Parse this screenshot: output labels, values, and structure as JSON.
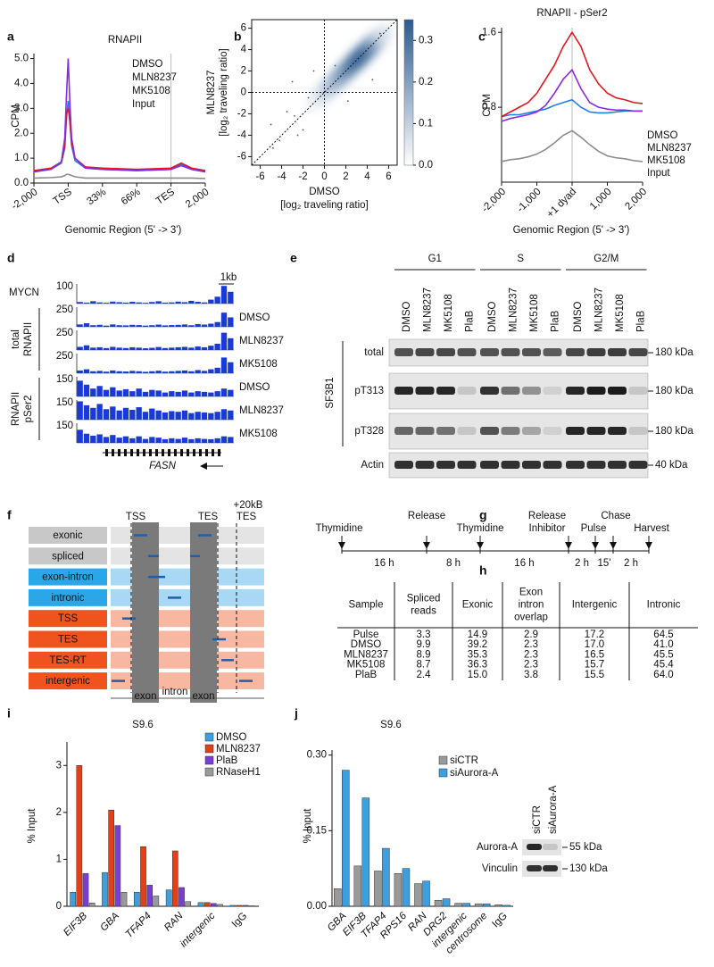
{
  "chart_data": [
    {
      "panel": "a",
      "type": "line",
      "title": "RNAPII",
      "ylabel": "CPM",
      "xlabel": "Genomic Region (5' -> 3')",
      "x": [
        0,
        0.5,
        0.8,
        0.9,
        0.95,
        1.0,
        1.05,
        1.1,
        1.2,
        1.5,
        2,
        3,
        4,
        4.3,
        4.6,
        5
      ],
      "xlim": [
        0,
        5
      ],
      "xticks": [
        {
          "value": 0,
          "label": "-2,000"
        },
        {
          "value": 1,
          "label": "TSS"
        },
        {
          "value": 2,
          "label": "33%"
        },
        {
          "value": 3,
          "label": "66%"
        },
        {
          "value": 4,
          "label": "TES"
        },
        {
          "value": 5,
          "label": "2,000"
        }
      ],
      "ylim": [
        0,
        5.2
      ],
      "yticks": [
        {
          "value": 0,
          "label": "0.0"
        },
        {
          "value": 1,
          "label": "1.0"
        },
        {
          "value": 2,
          "label": "2.0"
        },
        {
          "value": 3,
          "label": "3.0"
        },
        {
          "value": 4,
          "label": "4.0"
        },
        {
          "value": 5,
          "label": "5.0"
        }
      ],
      "vline": 4,
      "series": [
        {
          "name": "DMSO",
          "color": "#1f7fe8",
          "values": [
            0.45,
            0.55,
            0.8,
            1.4,
            2.6,
            3.3,
            2.4,
            1.5,
            0.9,
            0.6,
            0.55,
            0.5,
            0.55,
            0.75,
            0.55,
            0.45
          ]
        },
        {
          "name": "MLN8237",
          "color": "#e3161c",
          "values": [
            0.5,
            0.6,
            0.85,
            1.5,
            2.8,
            3.0,
            2.5,
            1.6,
            1.0,
            0.65,
            0.6,
            0.55,
            0.6,
            0.8,
            0.6,
            0.5
          ]
        },
        {
          "name": "MK5108",
          "color": "#8a2be2",
          "values": [
            0.45,
            0.55,
            0.85,
            1.8,
            3.5,
            5.0,
            3.2,
            1.8,
            1.0,
            0.6,
            0.55,
            0.5,
            0.55,
            0.7,
            0.55,
            0.45
          ]
        },
        {
          "name": "Input",
          "color": "#8c8c8c",
          "values": [
            0.2,
            0.22,
            0.25,
            0.3,
            0.35,
            0.35,
            0.33,
            0.3,
            0.25,
            0.2,
            0.2,
            0.2,
            0.2,
            0.2,
            0.2,
            0.18
          ]
        }
      ]
    },
    {
      "panel": "b",
      "type": "density",
      "xlabel": [
        "DMSO",
        "[log₂ traveling ratio]"
      ],
      "ylabel": [
        "MLN8237",
        "[log₂ traveling ratio]"
      ],
      "xlim": [
        -6.8,
        6.8
      ],
      "ylim": [
        -6.8,
        6.8
      ],
      "xticks": [
        -6,
        -4,
        -2,
        0,
        2,
        4,
        6
      ],
      "yticks": [
        -6,
        -4,
        -2,
        0,
        2,
        4,
        6
      ],
      "density": {
        "x": [
          -1,
          -0.5,
          0,
          0.5,
          1,
          1.5,
          2,
          2.5,
          3,
          3.5,
          4,
          4.5,
          5,
          5.5
        ],
        "y": [
          -1,
          -0.5,
          0,
          0.5,
          1,
          1.5,
          2,
          2.5,
          3,
          3.5,
          4,
          4.5,
          5,
          5.5
        ],
        "values": [
          0.02,
          0.05,
          0.08,
          0.12,
          0.16,
          0.2,
          0.24,
          0.28,
          0.32,
          0.33,
          0.3,
          0.25,
          0.15,
          0.06
        ]
      },
      "points": {
        "x": [
          -5,
          -4.2,
          -3.5,
          -2.8,
          -2,
          -1.5,
          -3,
          -4.8,
          1,
          -1,
          4.5,
          5.2,
          2.2,
          -2.5
        ],
        "y": [
          -3,
          -4.5,
          -1.8,
          -2.2,
          -3.5,
          -0.5,
          1,
          -5.2,
          2.5,
          2,
          1.2,
          5.5,
          -0.8,
          -4
        ]
      },
      "colorbar": {
        "colors": [
          "#ffffff",
          "#2a5a8f"
        ],
        "lim": [
          0,
          0.35
        ],
        "ticks": [
          {
            "value": 0,
            "label": "0.0"
          },
          0.1,
          0.2,
          0.3
        ]
      }
    },
    {
      "panel": "c",
      "type": "line",
      "title": "RNAPII - pSer2",
      "ylabel": "CPM",
      "xlabel": "Genomic Region (5' -> 3')",
      "x": [
        -2000,
        -1750,
        -1500,
        -1250,
        -1000,
        -750,
        -500,
        -250,
        0,
        250,
        500,
        750,
        1000,
        1250,
        1500,
        1750,
        2000
      ],
      "xlim": [
        -2000,
        2000
      ],
      "xticks": [
        {
          "value": -2000,
          "label": "-2,000"
        },
        {
          "value": -1000,
          "label": "-1,000"
        },
        {
          "value": 0,
          "label": "+1 dyad"
        },
        {
          "value": 1000,
          "label": "1,000"
        },
        {
          "value": 2000,
          "label": "2,000"
        }
      ],
      "ylim": [
        0,
        1.65
      ],
      "yticks": [
        0.8,
        1.6
      ],
      "vline": 0,
      "series": [
        {
          "name": "DMSO",
          "color": "#1f7fe8",
          "values": [
            0.7,
            0.72,
            0.72,
            0.74,
            0.76,
            0.78,
            0.82,
            0.85,
            0.88,
            0.8,
            0.75,
            0.74,
            0.74,
            0.75,
            0.76,
            0.76,
            0.76
          ]
        },
        {
          "name": "MLN8237",
          "color": "#e3161c",
          "values": [
            0.7,
            0.75,
            0.8,
            0.85,
            0.95,
            1.1,
            1.25,
            1.45,
            1.6,
            1.45,
            1.2,
            1.05,
            0.95,
            0.9,
            0.88,
            0.85,
            0.84
          ]
        },
        {
          "name": "MK5108",
          "color": "#8a2be2",
          "values": [
            0.65,
            0.68,
            0.7,
            0.72,
            0.75,
            0.82,
            0.95,
            1.1,
            1.2,
            1.0,
            0.85,
            0.8,
            0.78,
            0.77,
            0.77,
            0.76,
            0.76
          ]
        },
        {
          "name": "Input",
          "color": "#8c8c8c",
          "values": [
            0.22,
            0.24,
            0.25,
            0.27,
            0.3,
            0.35,
            0.42,
            0.5,
            0.55,
            0.48,
            0.4,
            0.33,
            0.28,
            0.26,
            0.25,
            0.23,
            0.22
          ]
        }
      ]
    },
    {
      "panel": "i",
      "type": "bar",
      "title": "S9.6",
      "ylabel": "% Input",
      "categories": [
        "EIF3B",
        "GBA",
        "TFAP4",
        "RAN",
        "intergenic",
        "IgG"
      ],
      "ylim": [
        0,
        3.5
      ],
      "yticks": [
        0,
        1,
        2,
        3
      ],
      "series": [
        {
          "name": "DMSO",
          "color": "#3ca0e0",
          "values": [
            0.3,
            0.72,
            0.3,
            0.35,
            0.08,
            0.02
          ]
        },
        {
          "name": "MLN8237",
          "color": "#e0401a",
          "values": [
            3.0,
            2.05,
            1.27,
            1.18,
            0.08,
            0.02
          ]
        },
        {
          "name": "PlaB",
          "color": "#7a3ed6",
          "values": [
            0.7,
            1.72,
            0.45,
            0.4,
            0.06,
            0.02
          ]
        },
        {
          "name": "RNaseH1",
          "color": "#9a9a9a",
          "values": [
            0.07,
            0.3,
            0.22,
            0.1,
            0.04,
            0.01
          ]
        }
      ]
    },
    {
      "panel": "j",
      "type": "bar",
      "title": "S9.6",
      "ylabel": "% Input",
      "categories": [
        "GBA",
        "EIF3B",
        "TFAP4",
        "RPS16",
        "RAN",
        "DRG2",
        "intergenic",
        "centrosome",
        "IgG"
      ],
      "ylim": [
        0,
        0.31
      ],
      "yticks": [
        {
          "value": 0,
          "label": "0.00"
        },
        {
          "value": 0.15,
          "label": "0.15"
        },
        {
          "value": 0.3,
          "label": "0.30"
        }
      ],
      "series": [
        {
          "name": "siCTR",
          "color": "#9a9a9a",
          "values": [
            0.035,
            0.08,
            0.07,
            0.065,
            0.045,
            0.012,
            0.006,
            0.005,
            0.003
          ]
        },
        {
          "name": "siAurora-A",
          "color": "#3ca0e0",
          "values": [
            0.27,
            0.215,
            0.115,
            0.075,
            0.05,
            0.015,
            0.006,
            0.005,
            0.002
          ]
        }
      ],
      "inset": {
        "lanes": [
          "siCTR",
          "siAurora-A"
        ],
        "rows": [
          {
            "name": "Aurora-A",
            "size": "55 kDa",
            "intensity": [
              0.9,
              0.15
            ]
          },
          {
            "name": "Vinculin",
            "size": "130 kDa",
            "intensity": [
              0.85,
              0.85
            ]
          }
        ]
      }
    }
  ],
  "browser": {
    "panel": "d",
    "scale": "1kb",
    "gene": "FASN",
    "groups": [
      [
        "total",
        "RNAPII"
      ],
      [
        "RNAPII",
        "pSer2"
      ]
    ],
    "tracks": [
      {
        "name": "MYCN",
        "range": 100,
        "values": [
          8,
          5,
          12,
          6,
          4,
          10,
          7,
          5,
          9,
          6,
          4,
          8,
          12,
          5,
          6,
          10,
          7,
          14,
          9,
          6,
          20,
          35,
          90,
          60
        ]
      },
      {
        "name": "DMSO",
        "range": 250,
        "values": [
          30,
          45,
          20,
          25,
          15,
          30,
          20,
          18,
          25,
          22,
          15,
          20,
          28,
          18,
          22,
          25,
          30,
          20,
          35,
          28,
          40,
          60,
          180,
          120
        ]
      },
      {
        "name": "MLN8237",
        "range": 250,
        "values": [
          40,
          60,
          30,
          35,
          25,
          40,
          30,
          25,
          35,
          30,
          22,
          28,
          38,
          25,
          30,
          35,
          40,
          30,
          45,
          35,
          55,
          80,
          220,
          150
        ]
      },
      {
        "name": "MK5108",
        "range": 250,
        "values": [
          35,
          50,
          25,
          30,
          20,
          35,
          25,
          22,
          30,
          25,
          18,
          25,
          32,
          20,
          25,
          30,
          35,
          25,
          40,
          30,
          50,
          70,
          200,
          140
        ]
      },
      {
        "name": "DMSO",
        "range": 150,
        "values": [
          120,
          90,
          60,
          80,
          50,
          70,
          45,
          55,
          40,
          60,
          35,
          50,
          45,
          30,
          40,
          35,
          45,
          30,
          40,
          35,
          30,
          40,
          60,
          50
        ]
      },
      {
        "name": "MLN8237",
        "range": 150,
        "values": [
          140,
          110,
          90,
          120,
          80,
          100,
          70,
          90,
          75,
          95,
          60,
          85,
          70,
          55,
          65,
          60,
          70,
          50,
          60,
          55,
          50,
          60,
          80,
          70
        ]
      },
      {
        "name": "MK5108",
        "range": 150,
        "values": [
          100,
          70,
          55,
          65,
          45,
          60,
          40,
          50,
          35,
          50,
          30,
          45,
          40,
          28,
          35,
          30,
          40,
          28,
          35,
          30,
          28,
          35,
          50,
          45
        ]
      }
    ]
  },
  "blot": {
    "panel": "e",
    "groups": [
      "G1",
      "S",
      "G2/M"
    ],
    "lanes": [
      "DMSO",
      "MLN8237",
      "MK5108",
      "PlaB",
      "DMSO",
      "MLN8237",
      "MK5108",
      "PlaB",
      "DMSO",
      "MLN8237",
      "MK5108",
      "PlaB"
    ],
    "target": "SF3B1",
    "rows": [
      {
        "name": "total",
        "size": "180 kDa",
        "intensity": [
          0.7,
          0.75,
          0.75,
          0.7,
          0.7,
          0.7,
          0.7,
          0.65,
          0.75,
          0.8,
          0.8,
          0.75
        ]
      },
      {
        "name": "pT313",
        "size": "180 kDa",
        "intensity": [
          0.9,
          0.9,
          0.9,
          0.15,
          0.85,
          0.55,
          0.4,
          0.1,
          0.9,
          0.95,
          0.95,
          0.15
        ]
      },
      {
        "name": "pT328",
        "size": "180 kDa",
        "intensity": [
          0.6,
          0.6,
          0.55,
          0.15,
          0.7,
          0.5,
          0.3,
          0.1,
          0.9,
          0.9,
          0.9,
          0.15
        ]
      },
      {
        "name": "Actin",
        "size": "40 kDa",
        "intensity": [
          0.85,
          0.85,
          0.85,
          0.85,
          0.85,
          0.85,
          0.85,
          0.85,
          0.85,
          0.85,
          0.85,
          0.85
        ]
      }
    ]
  },
  "diagram": {
    "panel": "f",
    "rows": [
      "exonic",
      "spliced",
      "exon-intron",
      "intronic",
      "TSS",
      "TES",
      "TES-RT",
      "intergenic"
    ],
    "markers": [
      "TSS",
      "TES"
    ],
    "far_marker": [
      "+20kB",
      "TES"
    ],
    "segments": [
      "exon",
      "intron",
      "exon"
    ]
  },
  "timeline": {
    "panel": "g",
    "events": [
      [
        "Thymidine"
      ],
      [
        "Release"
      ],
      [
        "Thymidine"
      ],
      [
        "Release",
        "Inhibitor"
      ],
      [
        "Pulse"
      ],
      [
        "Chase"
      ],
      [
        "Harvest"
      ]
    ],
    "durations": [
      "16 h",
      "8 h",
      "16 h",
      "2 h",
      "15'",
      "2 h"
    ]
  },
  "table": {
    "panel": "h",
    "header": [
      [
        "Sample"
      ],
      [
        "Spliced",
        "reads"
      ],
      [
        "Exonic"
      ],
      [
        "Exon",
        "intron",
        "overlap"
      ],
      [
        "Intergenic"
      ],
      [
        "Intronic"
      ]
    ],
    "rows": [
      [
        "Pulse",
        "3.3",
        "14.9",
        "2.9",
        "17.2",
        "64.5"
      ],
      [
        "DMSO",
        "9.9",
        "39.2",
        "2.3",
        "17.0",
        "41.0"
      ],
      [
        "MLN8237",
        "8.9",
        "35.3",
        "2.3",
        "16.5",
        "45.5"
      ],
      [
        "MK5108",
        "8.7",
        "36.3",
        "2.3",
        "15.7",
        "45.4"
      ],
      [
        "PlaB",
        "2.4",
        "15.0",
        "3.8",
        "15.5",
        "64.0"
      ]
    ]
  }
}
